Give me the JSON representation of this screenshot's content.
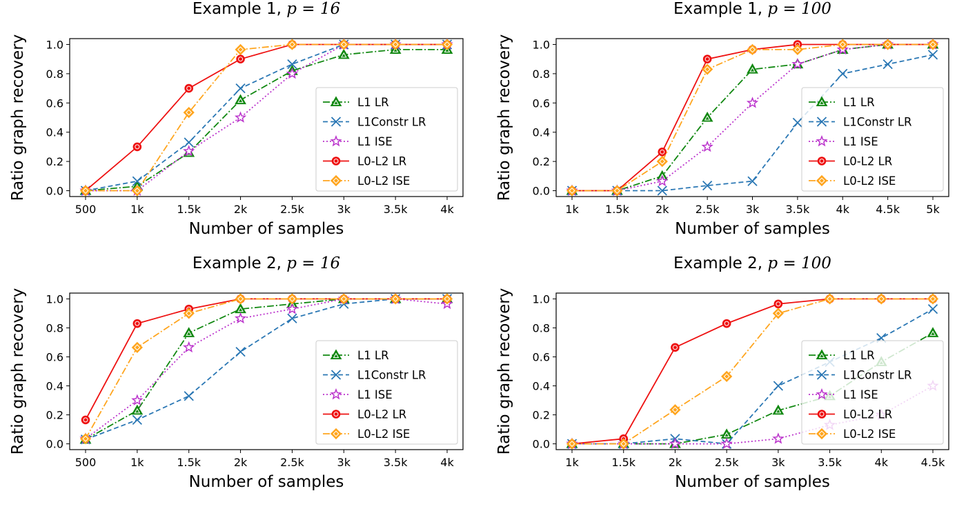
{
  "colors": {
    "L1 LR": "#118811",
    "L1Constr LR": "#2a77b4",
    "L1 ISE": "#bb33cc",
    "L0-L2 LR": "#ee1111",
    "L0-L2 ISE": "#ffa51e"
  },
  "legend_entries": [
    "L1 LR",
    "L1Constr LR",
    "L1 ISE",
    "L0-L2 LR",
    "L0-L2 ISE"
  ],
  "chart_data": [
    {
      "type": "line",
      "title": "Example 1, ",
      "title_math": "p = 16",
      "xlabel": "Number of samples",
      "ylabel": "Ratio graph recovery",
      "categories": [
        "500",
        "1k",
        "1.5k",
        "2k",
        "2.5k",
        "3k",
        "3.5k",
        "4k"
      ],
      "ylim": [
        -0.04,
        1.04
      ],
      "yticks": [
        "0.0",
        "0.2",
        "0.4",
        "0.6",
        "0.8",
        "1.0"
      ],
      "legend_position": "lower right",
      "series": [
        {
          "name": "L1 LR",
          "values": [
            0.0,
            0.03,
            0.26,
            0.62,
            0.82,
            0.93,
            0.965,
            0.965
          ]
        },
        {
          "name": "L1Constr LR",
          "values": [
            0.0,
            0.065,
            0.33,
            0.7,
            0.865,
            1.0,
            1.0,
            1.0
          ]
        },
        {
          "name": "L1 ISE",
          "values": [
            0.0,
            0.0,
            0.27,
            0.5,
            0.8,
            1.0,
            1.0,
            1.0
          ]
        },
        {
          "name": "L0-L2 LR",
          "values": [
            0.0,
            0.3,
            0.7,
            0.9,
            1.0,
            1.0,
            1.0,
            1.0
          ]
        },
        {
          "name": "L0-L2 ISE",
          "values": [
            0.0,
            0.0,
            0.535,
            0.965,
            1.0,
            1.0,
            1.0,
            1.0
          ]
        }
      ]
    },
    {
      "type": "line",
      "title": "Example 1, ",
      "title_math": "p = 100",
      "xlabel": "Number of samples",
      "ylabel": "Ratio graph recovery",
      "categories": [
        "1k",
        "1.5k",
        "2k",
        "2.5k",
        "3k",
        "3.5k",
        "4k",
        "4.5k",
        "5k"
      ],
      "ylim": [
        -0.04,
        1.04
      ],
      "yticks": [
        "0.0",
        "0.2",
        "0.4",
        "0.6",
        "0.8",
        "1.0"
      ],
      "legend_position": "lower right",
      "series": [
        {
          "name": "L1 LR",
          "values": [
            0.0,
            0.0,
            0.1,
            0.5,
            0.83,
            0.865,
            0.965,
            1.0,
            1.0
          ]
        },
        {
          "name": "L1Constr LR",
          "values": [
            0.0,
            0.0,
            0.0,
            0.035,
            0.065,
            0.465,
            0.8,
            0.865,
            0.93
          ]
        },
        {
          "name": "L1 ISE",
          "values": [
            0.0,
            0.0,
            0.065,
            0.3,
            0.6,
            0.865,
            0.965,
            1.0,
            1.0
          ]
        },
        {
          "name": "L0-L2 LR",
          "values": [
            0.0,
            0.0,
            0.265,
            0.9,
            0.965,
            1.0,
            1.0,
            1.0,
            1.0
          ]
        },
        {
          "name": "L0-L2 ISE",
          "values": [
            0.0,
            0.0,
            0.2,
            0.83,
            0.965,
            0.965,
            1.0,
            1.0,
            1.0
          ]
        }
      ]
    },
    {
      "type": "line",
      "title": "Example 2, ",
      "title_math": "p = 16",
      "xlabel": "Number of samples",
      "ylabel": "Ratio graph recovery",
      "categories": [
        "500",
        "1k",
        "1.5k",
        "2k",
        "2.5k",
        "3k",
        "3.5k",
        "4k"
      ],
      "ylim": [
        -0.04,
        1.04
      ],
      "yticks": [
        "0.0",
        "0.2",
        "0.4",
        "0.6",
        "0.8",
        "1.0"
      ],
      "legend_position": "lower right",
      "series": [
        {
          "name": "L1 LR",
          "values": [
            0.03,
            0.23,
            0.765,
            0.93,
            0.965,
            1.0,
            1.0,
            1.0
          ]
        },
        {
          "name": "L1Constr LR",
          "values": [
            0.03,
            0.165,
            0.33,
            0.635,
            0.865,
            0.965,
            1.0,
            1.0
          ]
        },
        {
          "name": "L1 ISE",
          "values": [
            0.035,
            0.3,
            0.665,
            0.865,
            0.93,
            1.0,
            1.0,
            0.965
          ]
        },
        {
          "name": "L0-L2 LR",
          "values": [
            0.165,
            0.83,
            0.93,
            1.0,
            1.0,
            1.0,
            1.0,
            1.0
          ]
        },
        {
          "name": "L0-L2 ISE",
          "values": [
            0.035,
            0.665,
            0.9,
            1.0,
            1.0,
            1.0,
            1.0,
            1.0
          ]
        }
      ]
    },
    {
      "type": "line",
      "title": "Example 2, ",
      "title_math": "p = 100",
      "xlabel": "Number of samples",
      "ylabel": "Ratio graph recovery",
      "categories": [
        "1k",
        "1.5k",
        "2k",
        "2.5k",
        "3k",
        "3.5k",
        "4k",
        "4.5k"
      ],
      "ylim": [
        -0.04,
        1.04
      ],
      "yticks": [
        "0.0",
        "0.2",
        "0.4",
        "0.6",
        "0.8",
        "1.0"
      ],
      "legend_position": "lower right",
      "series": [
        {
          "name": "L1 LR",
          "values": [
            0.0,
            0.0,
            0.0,
            0.065,
            0.23,
            0.33,
            0.565,
            0.765
          ]
        },
        {
          "name": "L1Constr LR",
          "values": [
            0.0,
            0.0,
            0.035,
            0.0,
            0.4,
            0.565,
            0.73,
            0.93
          ]
        },
        {
          "name": "L1 ISE",
          "values": [
            0.0,
            0.0,
            0.0,
            0.0,
            0.035,
            0.13,
            0.2,
            0.4
          ]
        },
        {
          "name": "L0-L2 LR",
          "values": [
            0.0,
            0.035,
            0.665,
            0.83,
            0.965,
            1.0,
            1.0,
            1.0
          ]
        },
        {
          "name": "L0-L2 ISE",
          "values": [
            0.0,
            0.0,
            0.235,
            0.465,
            0.9,
            1.0,
            1.0,
            1.0
          ]
        }
      ]
    }
  ]
}
